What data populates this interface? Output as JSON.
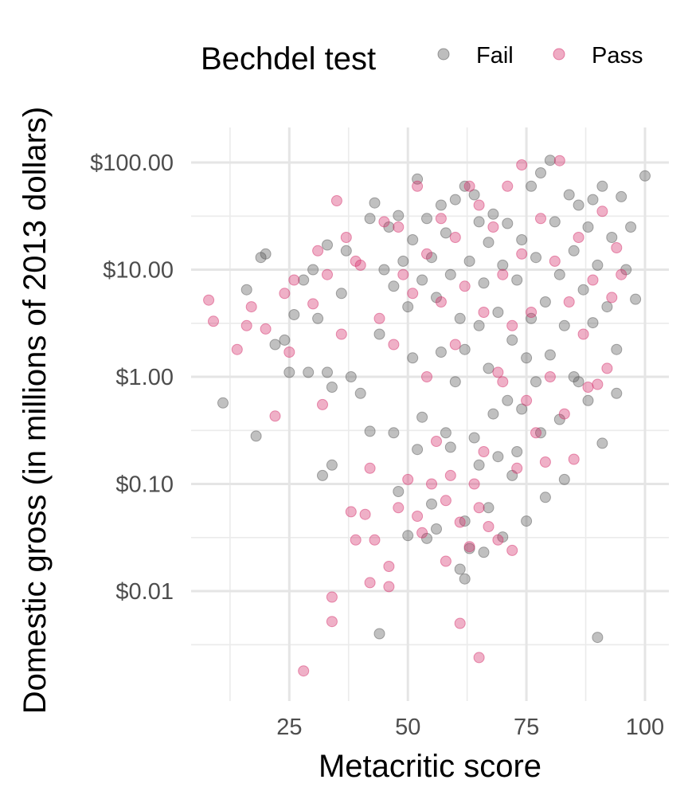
{
  "chart_data": {
    "type": "scatter",
    "title": "",
    "xlabel": "Metacritic score",
    "ylabel": "Domestic gross (in millions of 2013 dollars)",
    "x_ticks": [
      25,
      50,
      75,
      100
    ],
    "x_tick_labels": [
      "25",
      "50",
      "75",
      "100"
    ],
    "xlim": [
      8,
      102
    ],
    "y_scale": "log10",
    "y_ticks": [
      0.01,
      0.1,
      1,
      10,
      100
    ],
    "y_tick_labels": [
      "$0.01",
      "$0.10",
      "$1.00",
      "$10.00",
      "$100.00"
    ],
    "ylim": [
      0.0016,
      160
    ],
    "grid": true,
    "legend": {
      "title": "Bechdel test",
      "position": "top",
      "entries": [
        {
          "label": "Fail",
          "color": "#595959"
        },
        {
          "label": "Pass",
          "color": "#d6306c"
        }
      ]
    },
    "series": [
      {
        "name": "Fail",
        "color": "#595959",
        "points": [
          [
            11,
            0.57
          ],
          [
            16,
            6.5
          ],
          [
            18,
            0.28
          ],
          [
            19,
            13
          ],
          [
            20,
            14
          ],
          [
            22,
            2.0
          ],
          [
            24,
            2.2
          ],
          [
            25,
            1.1
          ],
          [
            26,
            3.8
          ],
          [
            28,
            8.0
          ],
          [
            29,
            1.1
          ],
          [
            30,
            10.0
          ],
          [
            31,
            3.5
          ],
          [
            32,
            0.12
          ],
          [
            33,
            17
          ],
          [
            33,
            1.1
          ],
          [
            34,
            0.15
          ],
          [
            34,
            0.8
          ],
          [
            36,
            6.0
          ],
          [
            37,
            15
          ],
          [
            38,
            1.0
          ],
          [
            40,
            0.7
          ],
          [
            42,
            0.31
          ],
          [
            42,
            30
          ],
          [
            43,
            42
          ],
          [
            44,
            2.5
          ],
          [
            44,
            0.004
          ],
          [
            45,
            10
          ],
          [
            46,
            25
          ],
          [
            47,
            0.3
          ],
          [
            47,
            7.0
          ],
          [
            48,
            0.085
          ],
          [
            48,
            32
          ],
          [
            49,
            12
          ],
          [
            50,
            0.033
          ],
          [
            50,
            4.5
          ],
          [
            51,
            1.5
          ],
          [
            51,
            19
          ],
          [
            52,
            0.21
          ],
          [
            52,
            70
          ],
          [
            53,
            0.42
          ],
          [
            53,
            8
          ],
          [
            54,
            0.031
          ],
          [
            54,
            30
          ],
          [
            55,
            0.065
          ],
          [
            55,
            13
          ],
          [
            56,
            0.038
          ],
          [
            56,
            5.5
          ],
          [
            57,
            1.7
          ],
          [
            57,
            40
          ],
          [
            58,
            0.3
          ],
          [
            58,
            22
          ],
          [
            59,
            9
          ],
          [
            59,
            0.22
          ],
          [
            60,
            0.9
          ],
          [
            60,
            45
          ],
          [
            61,
            0.016
          ],
          [
            61,
            3.5
          ],
          [
            62,
            0.013
          ],
          [
            62,
            0.045
          ],
          [
            62,
            1.8
          ],
          [
            62,
            60
          ],
          [
            63,
            0.025
          ],
          [
            63,
            12
          ],
          [
            64,
            0.27
          ],
          [
            64,
            50
          ],
          [
            65,
            0.15
          ],
          [
            65,
            3.0
          ],
          [
            65,
            28
          ],
          [
            66,
            0.023
          ],
          [
            66,
            7.5
          ],
          [
            67,
            0.06
          ],
          [
            67,
            1.2
          ],
          [
            67,
            18
          ],
          [
            68,
            0.45
          ],
          [
            68,
            33
          ],
          [
            69,
            0.18
          ],
          [
            69,
            4.0
          ],
          [
            70,
            0.032
          ],
          [
            70,
            11
          ],
          [
            71,
            0.6
          ],
          [
            71,
            27
          ],
          [
            72,
            0.12
          ],
          [
            72,
            2.2
          ],
          [
            73,
            0.2
          ],
          [
            73,
            8.0
          ],
          [
            74,
            0.5
          ],
          [
            74,
            19
          ],
          [
            75,
            0.045
          ],
          [
            75,
            1.5
          ],
          [
            76,
            3.5
          ],
          [
            76,
            60
          ],
          [
            77,
            0.9
          ],
          [
            77,
            13
          ],
          [
            78,
            0.3
          ],
          [
            78,
            80
          ],
          [
            79,
            0.075
          ],
          [
            79,
            5.0
          ],
          [
            80,
            105
          ],
          [
            80,
            1.6
          ],
          [
            81,
            28
          ],
          [
            82,
            0.4
          ],
          [
            82,
            9.0
          ],
          [
            83,
            0.11
          ],
          [
            83,
            3.0
          ],
          [
            84,
            50
          ],
          [
            85,
            1.0
          ],
          [
            85,
            15
          ],
          [
            86,
            40
          ],
          [
            87,
            6.5
          ],
          [
            88,
            25
          ],
          [
            88,
            0.6
          ],
          [
            89,
            3.2
          ],
          [
            89,
            45
          ],
          [
            90,
            11
          ],
          [
            90,
            0.0037
          ],
          [
            91,
            0.24
          ],
          [
            91,
            60
          ],
          [
            92,
            4.5
          ],
          [
            93,
            20
          ],
          [
            94,
            1.8
          ],
          [
            95,
            48
          ],
          [
            96,
            10
          ],
          [
            97,
            25
          ],
          [
            98,
            5.3
          ],
          [
            100,
            75
          ],
          [
            94,
            0.7
          ],
          [
            86,
            0.9
          ]
        ]
      },
      {
        "name": "Pass",
        "color": "#d6306c",
        "points": [
          [
            8,
            5.2
          ],
          [
            9,
            3.3
          ],
          [
            14,
            1.8
          ],
          [
            16,
            3.0
          ],
          [
            17,
            4.5
          ],
          [
            20,
            2.8
          ],
          [
            22,
            0.43
          ],
          [
            24,
            6.0
          ],
          [
            25,
            1.7
          ],
          [
            26,
            8.0
          ],
          [
            28,
            0.0018
          ],
          [
            30,
            4.8
          ],
          [
            31,
            15
          ],
          [
            32,
            0.55
          ],
          [
            33,
            9.0
          ],
          [
            34,
            0.0088
          ],
          [
            34,
            0.0052
          ],
          [
            35,
            44
          ],
          [
            36,
            2.5
          ],
          [
            37,
            20
          ],
          [
            38,
            0.055
          ],
          [
            39,
            0.03
          ],
          [
            40,
            11
          ],
          [
            41,
            0.052
          ],
          [
            42,
            0.012
          ],
          [
            42,
            0.14
          ],
          [
            43,
            0.03
          ],
          [
            44,
            3.5
          ],
          [
            45,
            28
          ],
          [
            46,
            0.017
          ],
          [
            46,
            0.011
          ],
          [
            47,
            2.0
          ],
          [
            48,
            0.06
          ],
          [
            49,
            9.0
          ],
          [
            50,
            0.11
          ],
          [
            51,
            6.0
          ],
          [
            52,
            0.05
          ],
          [
            52,
            60
          ],
          [
            53,
            0.035
          ],
          [
            54,
            1.0
          ],
          [
            54,
            14
          ],
          [
            55,
            0.1
          ],
          [
            56,
            0.25
          ],
          [
            57,
            5.0
          ],
          [
            57,
            30
          ],
          [
            58,
            0.07
          ],
          [
            58,
            0.019
          ],
          [
            59,
            0.12
          ],
          [
            60,
            2.0
          ],
          [
            60,
            20
          ],
          [
            61,
            0.005
          ],
          [
            61,
            0.044
          ],
          [
            62,
            7.0
          ],
          [
            63,
            0.026
          ],
          [
            64,
            0.1
          ],
          [
            65,
            0.0024
          ],
          [
            65,
            0.06
          ],
          [
            65,
            40
          ],
          [
            66,
            0.2
          ],
          [
            66,
            4.0
          ],
          [
            67,
            0.04
          ],
          [
            68,
            25
          ],
          [
            69,
            0.03
          ],
          [
            69,
            1.1
          ],
          [
            70,
            9.0
          ],
          [
            71,
            60
          ],
          [
            72,
            0.024
          ],
          [
            72,
            3.0
          ],
          [
            73,
            0.14
          ],
          [
            74,
            95
          ],
          [
            74,
            14
          ],
          [
            75,
            0.6
          ],
          [
            76,
            4.0
          ],
          [
            77,
            0.3
          ],
          [
            78,
            30
          ],
          [
            79,
            0.16
          ],
          [
            80,
            1.0
          ],
          [
            81,
            12
          ],
          [
            82,
            104
          ],
          [
            83,
            0.45
          ],
          [
            84,
            5.0
          ],
          [
            85,
            0.17
          ],
          [
            86,
            20
          ],
          [
            87,
            2.5
          ],
          [
            88,
            0.8
          ],
          [
            89,
            8.0
          ],
          [
            90,
            0.85
          ],
          [
            91,
            35
          ],
          [
            92,
            1.2
          ],
          [
            93,
            5.5
          ],
          [
            94,
            16
          ],
          [
            95,
            9.0
          ],
          [
            70,
            0.9
          ],
          [
            63,
            60
          ],
          [
            48,
            25
          ],
          [
            39,
            12
          ]
        ]
      }
    ]
  }
}
